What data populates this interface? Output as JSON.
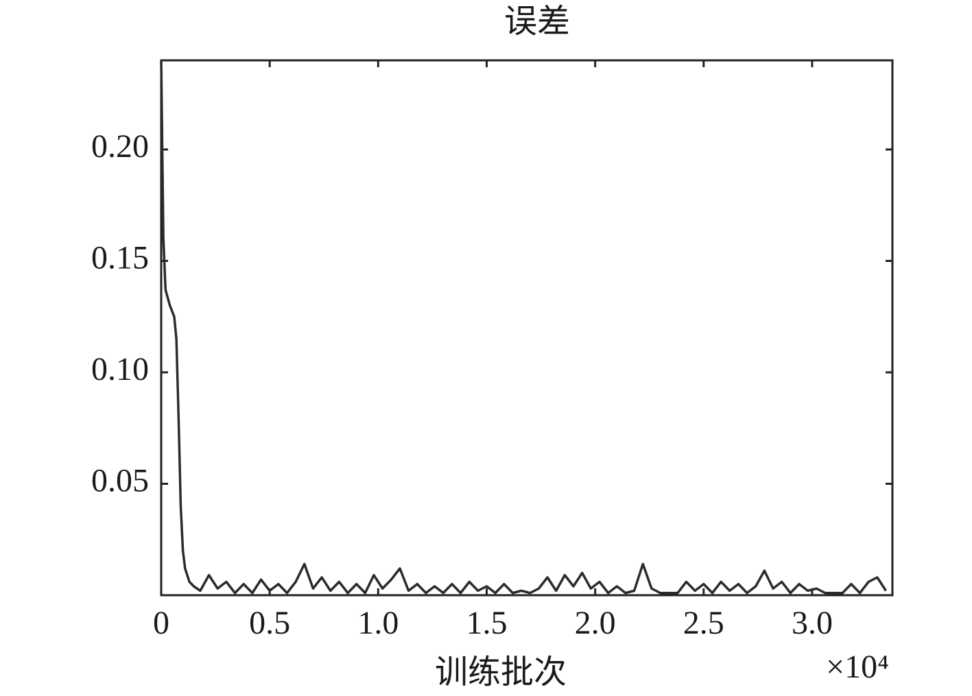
{
  "chart_data": {
    "type": "line",
    "title": "误差",
    "x_label": "训练批次",
    "x_multiplier": "×10⁴",
    "x": [
      0,
      0.01,
      0.02,
      0.04,
      0.06,
      0.07,
      0.08,
      0.09,
      0.1,
      0.11,
      0.13,
      0.15,
      0.18,
      0.22,
      0.26,
      0.3,
      0.34,
      0.38,
      0.42,
      0.46,
      0.5,
      0.54,
      0.58,
      0.62,
      0.66,
      0.7,
      0.74,
      0.78,
      0.82,
      0.86,
      0.9,
      0.94,
      0.98,
      1.02,
      1.06,
      1.1,
      1.14,
      1.18,
      1.22,
      1.26,
      1.3,
      1.34,
      1.38,
      1.42,
      1.46,
      1.5,
      1.54,
      1.58,
      1.62,
      1.66,
      1.7,
      1.74,
      1.78,
      1.82,
      1.86,
      1.9,
      1.94,
      1.98,
      2.02,
      2.06,
      2.1,
      2.14,
      2.18,
      2.22,
      2.26,
      2.3,
      2.34,
      2.38,
      2.42,
      2.46,
      2.5,
      2.54,
      2.58,
      2.62,
      2.66,
      2.7,
      2.74,
      2.78,
      2.82,
      2.86,
      2.9,
      2.94,
      2.98,
      3.02,
      3.06,
      3.1,
      3.14,
      3.18,
      3.22,
      3.26,
      3.3,
      3.34
    ],
    "series": [
      {
        "name": "误差",
        "color": "#2b2b2b",
        "values": [
          0.24,
          0.16,
          0.137,
          0.13,
          0.125,
          0.115,
          0.08,
          0.04,
          0.02,
          0.012,
          0.006,
          0.004,
          0.002,
          0.009,
          0.003,
          0.006,
          0.001,
          0.005,
          0.001,
          0.007,
          0.002,
          0.005,
          0.001,
          0.006,
          0.014,
          0.003,
          0.008,
          0.002,
          0.006,
          0.001,
          0.005,
          0.001,
          0.009,
          0.003,
          0.007,
          0.012,
          0.002,
          0.005,
          0.001,
          0.004,
          0.001,
          0.005,
          0.001,
          0.006,
          0.002,
          0.004,
          0.001,
          0.005,
          0.001,
          0.002,
          0.001,
          0.003,
          0.008,
          0.002,
          0.009,
          0.004,
          0.01,
          0.003,
          0.006,
          0.001,
          0.004,
          0.001,
          0.002,
          0.014,
          0.003,
          0.001,
          0.001,
          0.001,
          0.006,
          0.002,
          0.005,
          0.001,
          0.006,
          0.002,
          0.005,
          0.001,
          0.004,
          0.011,
          0.003,
          0.006,
          0.001,
          0.005,
          0.002,
          0.003,
          0.001,
          0.001,
          0.001,
          0.005,
          0.001,
          0.006,
          0.008,
          0.002
        ]
      }
    ],
    "xlim": [
      0,
      3.37
    ],
    "xticks": [
      0,
      0.5,
      {
        "value": 1,
        "label": "1.0"
      },
      1.5,
      {
        "value": 2,
        "label": "2.0"
      },
      2.5,
      {
        "value": 3,
        "label": "3.0"
      }
    ],
    "ylim": [
      0,
      0.24
    ],
    "yticks": [
      0.05,
      {
        "value": 0.1,
        "label": "0.10"
      },
      0.15,
      {
        "value": 0.2,
        "label": "0.20"
      }
    ],
    "grid": false
  }
}
